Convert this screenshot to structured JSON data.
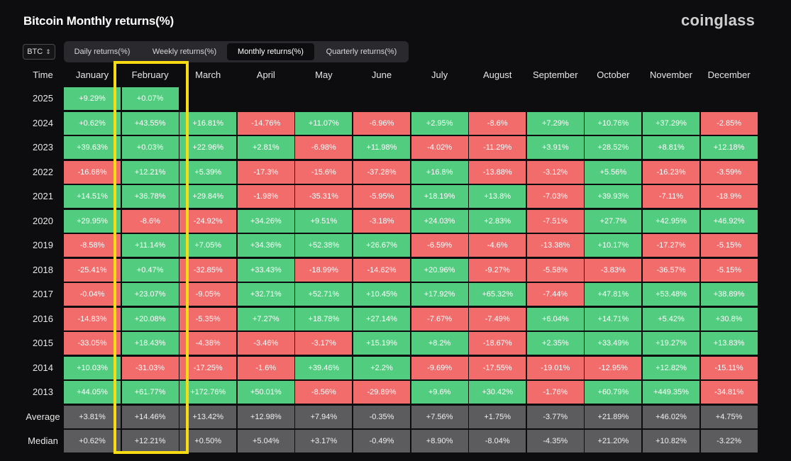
{
  "title": "Bitcoin Monthly returns(%)",
  "brand": "coinglass",
  "asset_select": {
    "value": "BTC",
    "icon": "chevron-updown-icon"
  },
  "tabs": [
    {
      "label": "Daily returns(%)",
      "active": false
    },
    {
      "label": "Weekly returns(%)",
      "active": false
    },
    {
      "label": "Monthly returns(%)",
      "active": true
    },
    {
      "label": "Quarterly returns(%)",
      "active": false
    }
  ],
  "colors": {
    "positive": "#52cc7f",
    "negative": "#f26c6c",
    "stat": "#5c5c5f",
    "highlight": "#f7dc14",
    "background": "#0d0d0f"
  },
  "table": {
    "time_header": "Time",
    "months": [
      "January",
      "February",
      "March",
      "April",
      "May",
      "June",
      "July",
      "August",
      "September",
      "October",
      "November",
      "December"
    ],
    "rows": [
      {
        "label": "2025",
        "values": [
          "+9.29%",
          "+0.07%"
        ]
      },
      {
        "label": "2024",
        "values": [
          "+0.62%",
          "+43.55%",
          "+16.81%",
          "-14.76%",
          "+11.07%",
          "-6.96%",
          "+2.95%",
          "-8.6%",
          "+7.29%",
          "+10.76%",
          "+37.29%",
          "-2.85%"
        ]
      },
      {
        "label": "2023",
        "values": [
          "+39.63%",
          "+0.03%",
          "+22.96%",
          "+2.81%",
          "-6.98%",
          "+11.98%",
          "-4.02%",
          "-11.29%",
          "+3.91%",
          "+28.52%",
          "+8.81%",
          "+12.18%"
        ]
      },
      {
        "label": "2022",
        "values": [
          "-16.68%",
          "+12.21%",
          "+5.39%",
          "-17.3%",
          "-15.6%",
          "-37.28%",
          "+16.8%",
          "-13.88%",
          "-3.12%",
          "+5.56%",
          "-16.23%",
          "-3.59%"
        ]
      },
      {
        "label": "2021",
        "values": [
          "+14.51%",
          "+36.78%",
          "+29.84%",
          "-1.98%",
          "-35.31%",
          "-5.95%",
          "+18.19%",
          "+13.8%",
          "-7.03%",
          "+39.93%",
          "-7.11%",
          "-18.9%"
        ]
      },
      {
        "label": "2020",
        "values": [
          "+29.95%",
          "-8.6%",
          "-24.92%",
          "+34.26%",
          "+9.51%",
          "-3.18%",
          "+24.03%",
          "+2.83%",
          "-7.51%",
          "+27.7%",
          "+42.95%",
          "+46.92%"
        ]
      },
      {
        "label": "2019",
        "values": [
          "-8.58%",
          "+11.14%",
          "+7.05%",
          "+34.36%",
          "+52.38%",
          "+26.67%",
          "-6.59%",
          "-4.6%",
          "-13.38%",
          "+10.17%",
          "-17.27%",
          "-5.15%"
        ]
      },
      {
        "label": "2018",
        "values": [
          "-25.41%",
          "+0.47%",
          "-32.85%",
          "+33.43%",
          "-18.99%",
          "-14.62%",
          "+20.96%",
          "-9.27%",
          "-5.58%",
          "-3.83%",
          "-36.57%",
          "-5.15%"
        ]
      },
      {
        "label": "2017",
        "values": [
          "-0.04%",
          "+23.07%",
          "-9.05%",
          "+32.71%",
          "+52.71%",
          "+10.45%",
          "+17.92%",
          "+65.32%",
          "-7.44%",
          "+47.81%",
          "+53.48%",
          "+38.89%"
        ]
      },
      {
        "label": "2016",
        "values": [
          "-14.83%",
          "+20.08%",
          "-5.35%",
          "+7.27%",
          "+18.78%",
          "+27.14%",
          "-7.67%",
          "-7.49%",
          "+6.04%",
          "+14.71%",
          "+5.42%",
          "+30.8%"
        ]
      },
      {
        "label": "2015",
        "values": [
          "-33.05%",
          "+18.43%",
          "-4.38%",
          "-3.46%",
          "-3.17%",
          "+15.19%",
          "+8.2%",
          "-18.67%",
          "+2.35%",
          "+33.49%",
          "+19.27%",
          "+13.83%"
        ]
      },
      {
        "label": "2014",
        "values": [
          "+10.03%",
          "-31.03%",
          "-17.25%",
          "-1.6%",
          "+39.46%",
          "+2.2%",
          "-9.69%",
          "-17.55%",
          "-19.01%",
          "-12.95%",
          "+12.82%",
          "-15.11%"
        ]
      },
      {
        "label": "2013",
        "values": [
          "+44.05%",
          "+61.77%",
          "+172.76%",
          "+50.01%",
          "-8.56%",
          "-29.89%",
          "+9.6%",
          "+30.42%",
          "-1.76%",
          "+60.79%",
          "+449.35%",
          "-34.81%"
        ]
      }
    ],
    "stats": [
      {
        "label": "Average",
        "values": [
          "+3.81%",
          "+14.46%",
          "+13.42%",
          "+12.98%",
          "+7.94%",
          "-0.35%",
          "+7.56%",
          "+1.75%",
          "-3.77%",
          "+21.89%",
          "+46.02%",
          "+4.75%"
        ]
      },
      {
        "label": "Median",
        "values": [
          "+0.62%",
          "+12.21%",
          "+0.50%",
          "+5.04%",
          "+3.17%",
          "-0.49%",
          "+8.90%",
          "-8.04%",
          "-4.35%",
          "+21.20%",
          "+10.82%",
          "-3.22%"
        ]
      }
    ]
  }
}
